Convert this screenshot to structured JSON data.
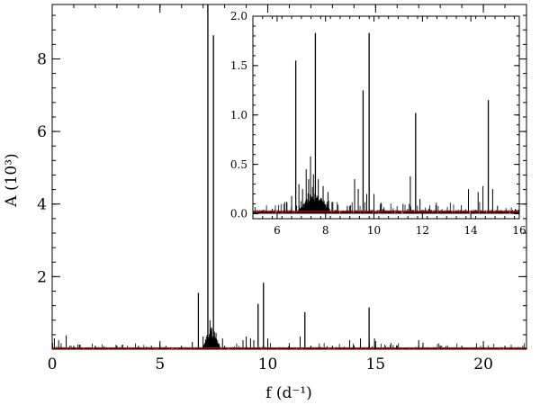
{
  "chart_data": [
    {
      "type": "line",
      "role": "main",
      "xlabel": "f (d⁻¹)",
      "ylabel": "A (10³)",
      "xlim": [
        0,
        22
      ],
      "ylim": [
        0,
        9.5
      ],
      "x_ticks": [
        0,
        5,
        10,
        15,
        20
      ],
      "x_tick_labels": [
        "0",
        "5",
        "10",
        "15",
        "20"
      ],
      "y_ticks": [
        2,
        4,
        6,
        8
      ],
      "y_tick_labels": [
        "2",
        "4",
        "6",
        "8"
      ],
      "grid": false,
      "colors": {
        "spectrum": "#000000",
        "noise": "#cc0000"
      },
      "peaks": [
        {
          "x": 0.1,
          "y": 0.3
        },
        {
          "x": 0.3,
          "y": 0.25
        },
        {
          "x": 0.65,
          "y": 0.38
        },
        {
          "x": 1.2,
          "y": 0.12
        },
        {
          "x": 2.4,
          "y": 0.08
        },
        {
          "x": 4.6,
          "y": 0.1
        },
        {
          "x": 6.5,
          "y": 0.2
        },
        {
          "x": 6.78,
          "y": 1.55
        },
        {
          "x": 7.0,
          "y": 0.35
        },
        {
          "x": 7.22,
          "y": 9.5
        },
        {
          "x": 7.32,
          "y": 0.8
        },
        {
          "x": 7.38,
          "y": 0.6
        },
        {
          "x": 7.48,
          "y": 8.65
        },
        {
          "x": 7.6,
          "y": 0.45
        },
        {
          "x": 7.9,
          "y": 0.3
        },
        {
          "x": 8.85,
          "y": 0.25
        },
        {
          "x": 9.0,
          "y": 0.35
        },
        {
          "x": 9.2,
          "y": 0.3
        },
        {
          "x": 9.35,
          "y": 0.25
        },
        {
          "x": 9.55,
          "y": 1.25
        },
        {
          "x": 9.8,
          "y": 1.83
        },
        {
          "x": 10.0,
          "y": 0.3
        },
        {
          "x": 11.5,
          "y": 0.35
        },
        {
          "x": 11.72,
          "y": 1.02
        },
        {
          "x": 13.8,
          "y": 0.25
        },
        {
          "x": 14.3,
          "y": 0.3
        },
        {
          "x": 14.7,
          "y": 1.15
        },
        {
          "x": 14.95,
          "y": 0.3
        },
        {
          "x": 17.0,
          "y": 0.25
        },
        {
          "x": 17.2,
          "y": 0.18
        },
        {
          "x": 19.5,
          "y": 0.05
        }
      ],
      "hump": {
        "from": 7.0,
        "to": 7.8,
        "height": 0.55
      },
      "noise_level": 0.06
    },
    {
      "type": "line",
      "role": "inset",
      "xlim": [
        5,
        16
      ],
      "ylim": [
        -0.05,
        2.0
      ],
      "x_ticks": [
        6,
        8,
        10,
        12,
        14,
        16
      ],
      "x_tick_labels": [
        "6",
        "8",
        "10",
        "12",
        "14",
        "16"
      ],
      "y_ticks": [
        0.0,
        0.5,
        1.0,
        1.5,
        2.0
      ],
      "y_tick_labels": [
        "0.0",
        "0.5",
        "1.0",
        "1.5",
        "2.0"
      ],
      "grid": false,
      "colors": {
        "spectrum": "#000000",
        "noise": "#cc0000"
      },
      "peaks": [
        {
          "x": 5.8,
          "y": 0.05
        },
        {
          "x": 6.4,
          "y": 0.12
        },
        {
          "x": 6.6,
          "y": 0.18
        },
        {
          "x": 6.77,
          "y": 1.55
        },
        {
          "x": 6.9,
          "y": 0.3
        },
        {
          "x": 7.05,
          "y": 0.25
        },
        {
          "x": 7.2,
          "y": 0.45
        },
        {
          "x": 7.3,
          "y": 0.35
        },
        {
          "x": 7.38,
          "y": 0.58
        },
        {
          "x": 7.5,
          "y": 0.4
        },
        {
          "x": 7.58,
          "y": 1.83
        },
        {
          "x": 7.7,
          "y": 0.35
        },
        {
          "x": 7.9,
          "y": 0.28
        },
        {
          "x": 8.1,
          "y": 0.22
        },
        {
          "x": 8.3,
          "y": 0.12
        },
        {
          "x": 8.9,
          "y": 0.08
        },
        {
          "x": 9.2,
          "y": 0.35
        },
        {
          "x": 9.35,
          "y": 0.25
        },
        {
          "x": 9.55,
          "y": 1.25
        },
        {
          "x": 9.7,
          "y": 0.2
        },
        {
          "x": 9.8,
          "y": 1.83
        },
        {
          "x": 10.0,
          "y": 0.2
        },
        {
          "x": 10.3,
          "y": 0.1
        },
        {
          "x": 11.2,
          "y": 0.1
        },
        {
          "x": 11.5,
          "y": 0.38
        },
        {
          "x": 11.72,
          "y": 1.02
        },
        {
          "x": 11.9,
          "y": 0.15
        },
        {
          "x": 13.9,
          "y": 0.25
        },
        {
          "x": 14.3,
          "y": 0.22
        },
        {
          "x": 14.5,
          "y": 0.28
        },
        {
          "x": 14.72,
          "y": 1.15
        },
        {
          "x": 14.9,
          "y": 0.25
        },
        {
          "x": 15.1,
          "y": 0.08
        }
      ],
      "hump": {
        "from": 6.9,
        "to": 8.2,
        "height": 0.18
      },
      "noise_level": 0.04
    }
  ]
}
